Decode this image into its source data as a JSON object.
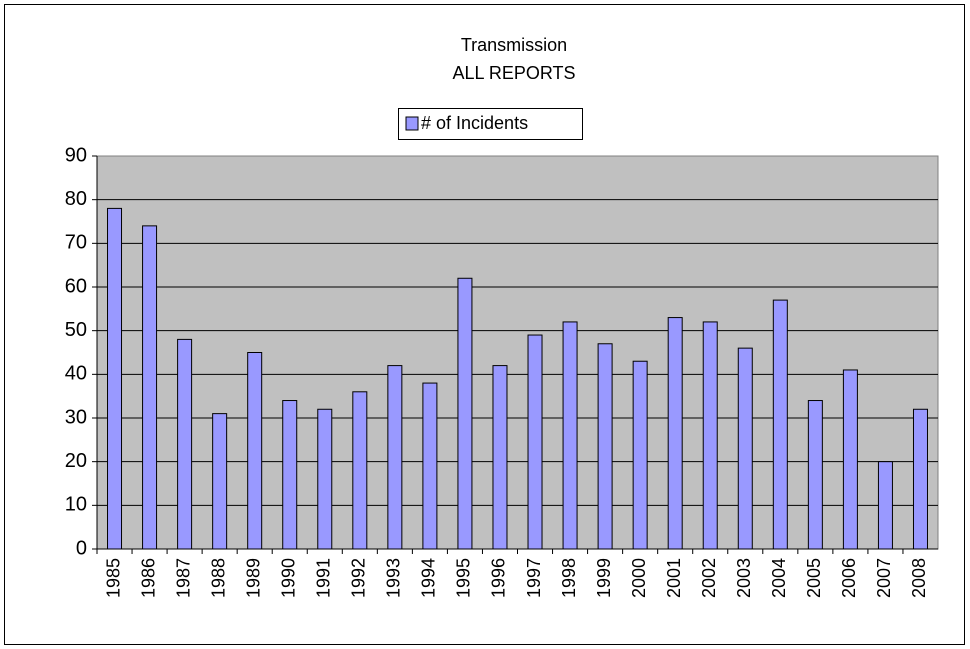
{
  "chart_data": {
    "type": "bar",
    "title": "Transmission",
    "subtitle": "ALL REPORTS",
    "categories": [
      "1985",
      "1986",
      "1987",
      "1988",
      "1989",
      "1990",
      "1991",
      "1992",
      "1993",
      "1994",
      "1995",
      "1996",
      "1997",
      "1998",
      "1999",
      "2000",
      "2001",
      "2002",
      "2003",
      "2004",
      "2005",
      "2006",
      "2007",
      "2008"
    ],
    "series": [
      {
        "name": "# of Incidents",
        "color": "#9999ff",
        "values": [
          78,
          74,
          48,
          31,
          45,
          34,
          32,
          36,
          42,
          38,
          62,
          42,
          49,
          52,
          47,
          43,
          53,
          52,
          46,
          57,
          34,
          41,
          20,
          32
        ]
      }
    ],
    "ylim": [
      0,
      90
    ],
    "yticks": [
      0,
      10,
      20,
      30,
      40,
      50,
      60,
      70,
      80,
      90
    ],
    "grid": true,
    "legend": "top"
  }
}
